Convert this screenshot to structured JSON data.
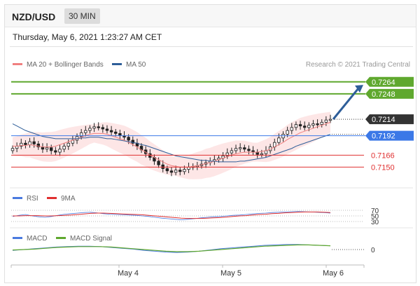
{
  "header": {
    "pair": "NZD/USD",
    "timeframe": "30 MIN"
  },
  "datetime": "Thursday, May 6, 2021 1:23:27 AM CET",
  "legend": {
    "ma20": "MA 20 + Bollinger Bands",
    "ma50": "MA 50",
    "credit": "Research © 2021 Trading Central"
  },
  "colors": {
    "ma20": "#f08080",
    "ma50": "#2e5e99",
    "band": "#fde3e3",
    "green": "#5fa82e",
    "blue": "#3b78e7",
    "red": "#e03030",
    "dark": "#333333",
    "candle": "#222222"
  },
  "icons": {
    "forecast": "forecast-arrow-icon"
  },
  "chart_data": {
    "type": "candlestick",
    "price_axis": {
      "ylim": [
        0.7126,
        0.7276
      ]
    },
    "levels": [
      {
        "name": "resistance-2",
        "value": 0.7264,
        "label": "0.7264",
        "style": "green"
      },
      {
        "name": "resistance-1",
        "value": 0.7248,
        "label": "0.7248",
        "style": "green"
      },
      {
        "name": "last-price",
        "value": 0.7214,
        "label": "0.7214",
        "style": "dark"
      },
      {
        "name": "pivot",
        "value": 0.7192,
        "label": "0.7192",
        "style": "blue"
      },
      {
        "name": "support-1",
        "value": 0.7166,
        "label": "0.7166",
        "style": "red"
      },
      {
        "name": "support-2",
        "value": 0.715,
        "label": "0.7150",
        "style": "red"
      }
    ],
    "x_labels": [
      "May 4",
      "May 5",
      "May 6"
    ],
    "close_series": [
      0.7175,
      0.7178,
      0.7182,
      0.718,
      0.7184,
      0.7181,
      0.7177,
      0.7174,
      0.7176,
      0.7172,
      0.717,
      0.7174,
      0.7178,
      0.7182,
      0.7186,
      0.7191,
      0.7196,
      0.7199,
      0.7202,
      0.7204,
      0.7203,
      0.7201,
      0.7199,
      0.7197,
      0.7195,
      0.7192,
      0.719,
      0.7186,
      0.7182,
      0.7178,
      0.7173,
      0.7168,
      0.7163,
      0.7158,
      0.7153,
      0.7148,
      0.7145,
      0.7143,
      0.7146,
      0.7144,
      0.7147,
      0.715,
      0.7151,
      0.7152,
      0.7154,
      0.7156,
      0.7158,
      0.716,
      0.7162,
      0.7165,
      0.7169,
      0.7172,
      0.7175,
      0.7176,
      0.7174,
      0.7172,
      0.717,
      0.7167,
      0.7168,
      0.7172,
      0.7177,
      0.7183,
      0.7189,
      0.7194,
      0.7199,
      0.7203,
      0.7207,
      0.7205,
      0.7203,
      0.7206,
      0.7208,
      0.7207,
      0.721,
      0.7213,
      0.7214
    ],
    "ma20_series": [
      0.7178,
      0.7178,
      0.7179,
      0.7179,
      0.718,
      0.7179,
      0.7178,
      0.7177,
      0.7177,
      0.7177,
      0.7178,
      0.718,
      0.7182,
      0.7184,
      0.7186,
      0.7188,
      0.719,
      0.7192,
      0.7194,
      0.7195,
      0.7195,
      0.7195,
      0.7194,
      0.7192,
      0.719,
      0.7188,
      0.7186,
      0.7183,
      0.718,
      0.7177,
      0.7173,
      0.717,
      0.7166,
      0.7163,
      0.716,
      0.7157,
      0.7154,
      0.7152,
      0.7151,
      0.715,
      0.715,
      0.715,
      0.7151,
      0.7152,
      0.7153,
      0.7155,
      0.7156,
      0.7158,
      0.716,
      0.7162,
      0.7164,
      0.7166,
      0.7168,
      0.7169,
      0.717,
      0.717,
      0.717,
      0.717,
      0.7171,
      0.7172,
      0.7174,
      0.7177,
      0.718,
      0.7183,
      0.7187,
      0.719,
      0.7193,
      0.7196,
      0.7198,
      0.72,
      0.7202,
      0.7204,
      0.7206,
      0.7208,
      0.721
    ],
    "ma50_series": [
      0.7208,
      0.7205,
      0.7202,
      0.7199,
      0.7197,
      0.7195,
      0.7193,
      0.7191,
      0.719,
      0.7189,
      0.7188,
      0.7188,
      0.7188,
      0.7188,
      0.7188,
      0.7188,
      0.7189,
      0.7189,
      0.719,
      0.719,
      0.719,
      0.7189,
      0.7188,
      0.7188,
      0.7187,
      0.7186,
      0.7185,
      0.7184,
      0.7183,
      0.7182,
      0.718,
      0.7179,
      0.7177,
      0.7175,
      0.7173,
      0.7171,
      0.7169,
      0.7167,
      0.7165,
      0.7164,
      0.7163,
      0.7162,
      0.7161,
      0.716,
      0.7159,
      0.7159,
      0.7158,
      0.7158,
      0.7157,
      0.7157,
      0.7157,
      0.7157,
      0.7157,
      0.7158,
      0.7158,
      0.7159,
      0.716,
      0.7161,
      0.7162,
      0.7163,
      0.7165,
      0.7167,
      0.7169,
      0.7171,
      0.7173,
      0.7175,
      0.7178,
      0.718,
      0.7182,
      0.7184,
      0.7186,
      0.7188,
      0.719,
      0.7192,
      0.7194
    ],
    "forecast": {
      "from": 0.7214,
      "to": 0.726
    },
    "rsi": {
      "labels": [
        "RSI",
        "9MA"
      ],
      "levels": [
        70,
        50,
        30
      ],
      "level_labels": [
        "70",
        "50",
        "30"
      ],
      "series": [
        48,
        52,
        55,
        50,
        47,
        45,
        48,
        52,
        56,
        58,
        60,
        62,
        63,
        61,
        58,
        56,
        55,
        54,
        53,
        52,
        50,
        48,
        45,
        42,
        40,
        38,
        36,
        38,
        40,
        43,
        45,
        47,
        48,
        50,
        52,
        53,
        55,
        57,
        59,
        60,
        62,
        63,
        64,
        65,
        66,
        65,
        64,
        63,
        62,
        60
      ],
      "ma9": [
        50,
        50,
        51,
        51,
        51,
        50,
        50,
        51,
        52,
        53,
        55,
        57,
        59,
        60,
        60,
        59,
        58,
        57,
        56,
        55,
        54,
        52,
        50,
        48,
        46,
        44,
        42,
        41,
        41,
        41,
        42,
        43,
        44,
        46,
        48,
        50,
        51,
        53,
        55,
        56,
        58,
        59,
        61,
        62,
        63,
        64,
        64,
        64,
        63,
        62
      ]
    },
    "macd": {
      "labels": [
        "MACD",
        "MACD Signal"
      ],
      "zero_label": "0",
      "series": [
        -0.2,
        0.0,
        0.2,
        0.4,
        0.6,
        0.7,
        0.8,
        0.8,
        0.7,
        0.5,
        0.3,
        0.1,
        -0.2,
        -0.4,
        -0.6,
        -0.7,
        -0.6,
        -0.4,
        -0.1,
        0.2,
        0.4,
        0.6,
        0.8,
        1.0,
        1.1,
        1.2,
        1.2,
        1.1,
        1.0,
        0.9
      ],
      "signal": [
        -0.1,
        0.0,
        0.1,
        0.3,
        0.5,
        0.6,
        0.7,
        0.7,
        0.7,
        0.6,
        0.4,
        0.2,
        0.0,
        -0.2,
        -0.4,
        -0.5,
        -0.5,
        -0.4,
        -0.2,
        0.0,
        0.2,
        0.4,
        0.6,
        0.8,
        0.9,
        1.0,
        1.1,
        1.1,
        1.0,
        0.9
      ]
    }
  }
}
